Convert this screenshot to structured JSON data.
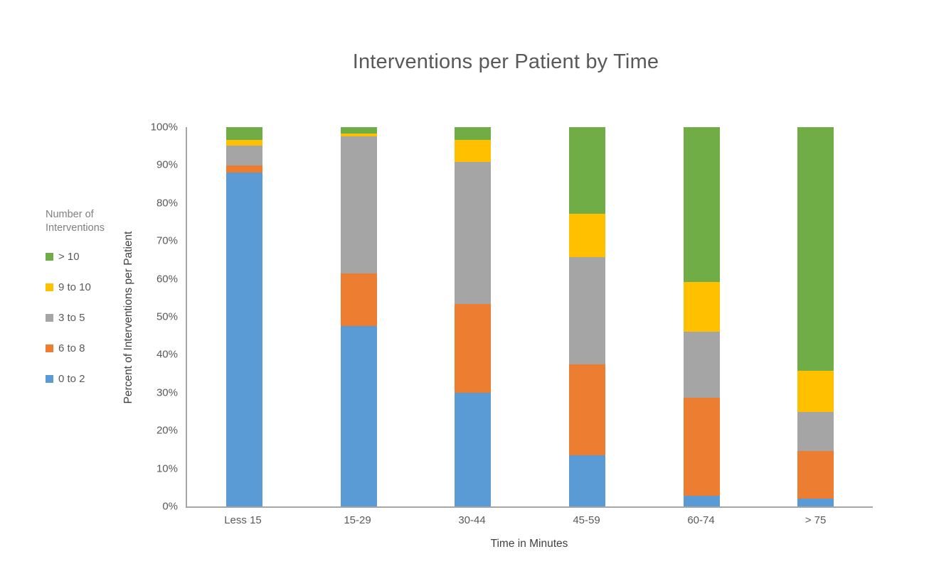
{
  "chart_data": {
    "type": "bar",
    "stacked": true,
    "title": "Interventions per Patient by Time",
    "xlabel": "Time in Minutes",
    "ylabel": "Percent of Interventions per Patient",
    "categories": [
      "Less 15",
      "15-29",
      "30-44",
      "45-59",
      "60-74",
      "> 75"
    ],
    "series": [
      {
        "name": "0 to 2",
        "color": "#5B9BD5",
        "values": [
          88.0,
          47.6,
          30.0,
          13.4,
          2.9,
          2.0
        ]
      },
      {
        "name": "6 to 8",
        "color": "#ED7D31",
        "values": [
          1.9,
          13.8,
          23.3,
          24.0,
          25.7,
          12.6
        ]
      },
      {
        "name": "3 to 5",
        "color": "#A5A5A5",
        "values": [
          5.2,
          36.2,
          37.6,
          28.4,
          17.4,
          10.4
        ]
      },
      {
        "name": "9 to 10",
        "color": "#FFC000",
        "values": [
          1.6,
          0.8,
          5.7,
          11.3,
          13.1,
          10.8
        ]
      },
      {
        "name": "> 10",
        "color": "#70AD47",
        "values": [
          3.3,
          1.6,
          3.4,
          22.9,
          40.9,
          64.2
        ]
      }
    ],
    "ylim": [
      0,
      100
    ],
    "yticks": [
      "0%",
      "10%",
      "20%",
      "30%",
      "40%",
      "50%",
      "60%",
      "70%",
      "80%",
      "90%",
      "100%"
    ],
    "grid": false,
    "legend": {
      "position": "left",
      "title": "Number of Interventions",
      "items": [
        {
          "label": "> 10",
          "color": "#70AD47"
        },
        {
          "label": "9 to 10",
          "color": "#FFC000"
        },
        {
          "label": "3 to 5",
          "color": "#A5A5A5"
        },
        {
          "label": "6 to 8",
          "color": "#ED7D31"
        },
        {
          "label": "0 to 2",
          "color": "#5B9BD5"
        }
      ]
    },
    "colors": {
      "axis_line": "#A6A6A6",
      "title_text": "#595959",
      "tick_text": "#595959",
      "axis_title_text": "#404040",
      "legend_title_text": "#7F7F7F"
    }
  }
}
